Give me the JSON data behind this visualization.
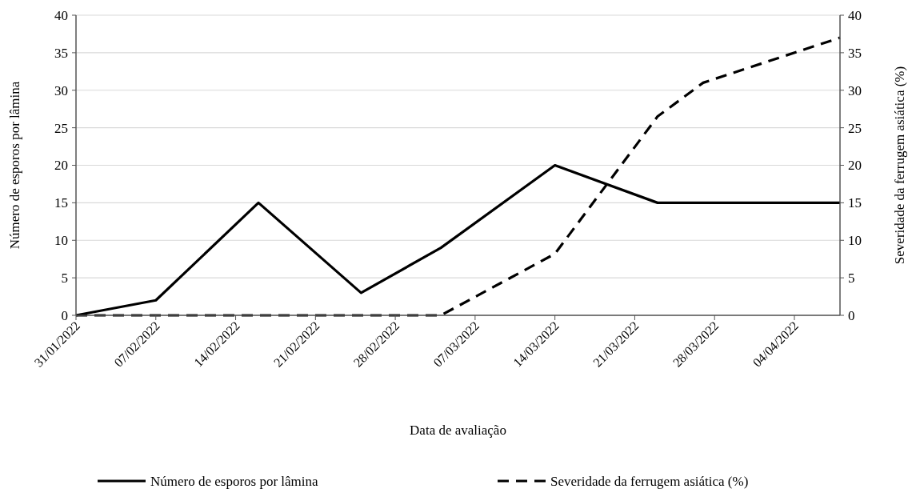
{
  "chart_data": {
    "type": "line",
    "xlabel": "Data de avaliação",
    "ylabel": "Número de esporos por lâmina",
    "y2label": "Severidade da ferrugem asiática (%)",
    "x": [
      "2022-01-31",
      "2022-02-07",
      "2022-02-16",
      "2022-02-25",
      "2022-03-04",
      "2022-03-14",
      "2022-03-23",
      "2022-03-27",
      "2022-04-08"
    ],
    "series": [
      {
        "name": "Número de esporos por lâmina",
        "color": "#000000",
        "line_style": "solid",
        "values": [
          0,
          2,
          15,
          3,
          9,
          20,
          15,
          15,
          15
        ]
      },
      {
        "name": "Severidade da ferrugem asiática (%)",
        "color": "#000000",
        "line_style": "dashed",
        "axis": "y2",
        "values": [
          0,
          0,
          0,
          0,
          0,
          8.2,
          26.5,
          31,
          37
        ]
      }
    ],
    "xlim": [
      "2022-01-31",
      "2022-04-08"
    ],
    "xticks": [
      {
        "value": "2022-01-31",
        "label": "31/01/2022"
      },
      {
        "value": "2022-02-07",
        "label": "07/02/2022"
      },
      {
        "value": "2022-02-14",
        "label": "14/02/2022"
      },
      {
        "value": "2022-02-21",
        "label": "21/02/2022"
      },
      {
        "value": "2022-02-28",
        "label": "28/02/2022"
      },
      {
        "value": "2022-03-07",
        "label": "07/03/2022"
      },
      {
        "value": "2022-03-14",
        "label": "14/03/2022"
      },
      {
        "value": "2022-03-21",
        "label": "21/03/2022"
      },
      {
        "value": "2022-03-28",
        "label": "28/03/2022"
      },
      {
        "value": "2022-04-04",
        "label": "04/04/2022"
      }
    ],
    "ylim": [
      0,
      40
    ],
    "yticks": [
      0,
      5,
      10,
      15,
      20,
      25,
      30,
      35,
      40
    ],
    "y2lim": [
      0,
      40
    ],
    "y2ticks": [
      0,
      5,
      10,
      15,
      20,
      25,
      30,
      35,
      40
    ],
    "grid": "y",
    "legend": "bottom"
  }
}
